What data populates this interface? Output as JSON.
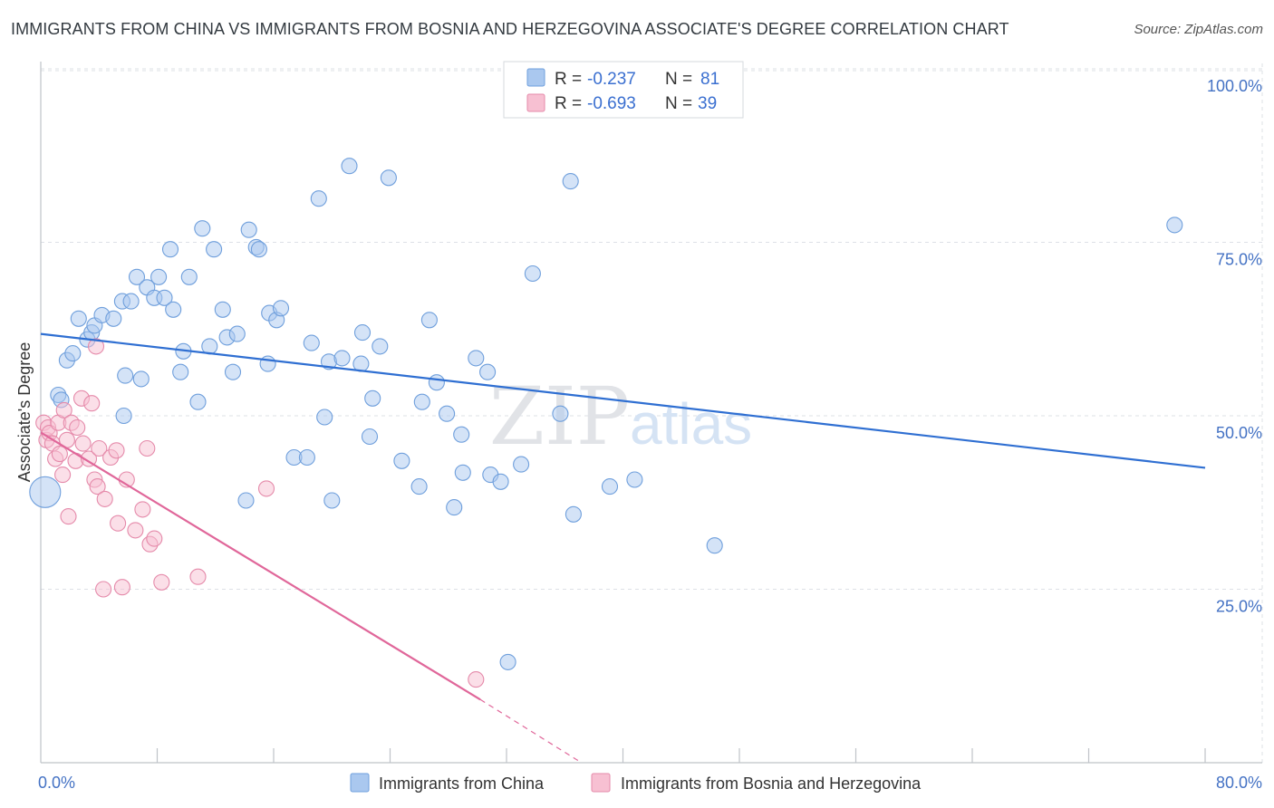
{
  "title": "IMMIGRANTS FROM CHINA VS IMMIGRANTS FROM BOSNIA AND HERZEGOVINA ASSOCIATE'S DEGREE CORRELATION CHART",
  "source": "Source: ZipAtlas.com",
  "watermark": "ZIPatlas",
  "colors": {
    "china_fill": "#aac8ef",
    "china_stroke": "#6f9fdc",
    "china_line": "#2f6fd2",
    "bosnia_fill": "#f7c0d2",
    "bosnia_stroke": "#e58aaa",
    "bosnia_line": "#e0679a",
    "tick_text": "#4472c4",
    "grid": "#dde0e6"
  },
  "legend": {
    "china": {
      "r_label": "R = ",
      "r_value": "-0.237",
      "n_label": "N = ",
      "n_value": "81"
    },
    "bosnia": {
      "r_label": "R = ",
      "r_value": "-0.693",
      "n_label": "N = ",
      "n_value": "39"
    }
  },
  "bottom_legend": {
    "china": "Immigrants from China",
    "bosnia": "Immigrants from Bosnia and Herzegovina"
  },
  "chart_data": {
    "type": "scatter",
    "title": "IMMIGRANTS FROM CHINA VS IMMIGRANTS FROM BOSNIA AND HERZEGOVINA ASSOCIATE'S DEGREE CORRELATION CHART",
    "xlabel": "",
    "ylabel": "Associate's Degree",
    "xlim": [
      0,
      80
    ],
    "ylim": [
      0,
      102
    ],
    "x_tick_labels": [
      "0.0%",
      "80.0%"
    ],
    "y_tick_labels": [
      "25.0%",
      "50.0%",
      "75.0%",
      "100.0%"
    ],
    "y_tick_values": [
      25,
      50,
      75,
      100
    ],
    "grid": true,
    "legend_position": "top-center",
    "series": [
      {
        "name": "Immigrants from China",
        "color": "#aac8ef",
        "trend": {
          "x": [
            0,
            80
          ],
          "y": [
            61.8,
            42.5
          ]
        },
        "points": [
          [
            0.3,
            39,
            3
          ],
          [
            1.2,
            53.0,
            1
          ],
          [
            1.4,
            52.3,
            1
          ],
          [
            1.8,
            58.0,
            1
          ],
          [
            2.2,
            59.0,
            1
          ],
          [
            2.6,
            64.0,
            1
          ],
          [
            3.2,
            61.0,
            1
          ],
          [
            3.5,
            62.0,
            1
          ],
          [
            3.7,
            63.0,
            1
          ],
          [
            4.2,
            64.5,
            1
          ],
          [
            5.0,
            64.0,
            1
          ],
          [
            5.6,
            66.5,
            1
          ],
          [
            5.7,
            50.0,
            1
          ],
          [
            5.8,
            55.8,
            1
          ],
          [
            6.2,
            66.5,
            1
          ],
          [
            6.6,
            70.0,
            1
          ],
          [
            6.9,
            55.3,
            1
          ],
          [
            7.3,
            68.5,
            1
          ],
          [
            7.8,
            67.0,
            1
          ],
          [
            8.1,
            70.0,
            1
          ],
          [
            8.5,
            67.0,
            1
          ],
          [
            8.9,
            74.0,
            1
          ],
          [
            9.1,
            65.3,
            1
          ],
          [
            9.6,
            56.3,
            1
          ],
          [
            9.8,
            59.3,
            1
          ],
          [
            10.2,
            70.0,
            1
          ],
          [
            10.8,
            52.0,
            1
          ],
          [
            11.1,
            77.0,
            1
          ],
          [
            11.6,
            60.0,
            1
          ],
          [
            11.9,
            74.0,
            1
          ],
          [
            12.5,
            65.3,
            1
          ],
          [
            12.8,
            61.3,
            1
          ],
          [
            13.2,
            56.3,
            1
          ],
          [
            13.5,
            61.8,
            1
          ],
          [
            14.1,
            37.8,
            1
          ],
          [
            14.3,
            76.8,
            1
          ],
          [
            14.8,
            74.3,
            1
          ],
          [
            15.0,
            74.0,
            1
          ],
          [
            15.6,
            57.5,
            1
          ],
          [
            15.7,
            64.8,
            1
          ],
          [
            16.2,
            63.8,
            1
          ],
          [
            16.5,
            65.5,
            1
          ],
          [
            17.4,
            44.0,
            1
          ],
          [
            18.3,
            44.0,
            1
          ],
          [
            18.6,
            60.5,
            1
          ],
          [
            19.1,
            81.3,
            1
          ],
          [
            19.5,
            49.8,
            1
          ],
          [
            19.8,
            57.8,
            1
          ],
          [
            20.0,
            37.8,
            1
          ],
          [
            20.7,
            58.3,
            1
          ],
          [
            21.2,
            86.0,
            1
          ],
          [
            22.0,
            57.5,
            1
          ],
          [
            22.1,
            62.0,
            1
          ],
          [
            22.6,
            47.0,
            1
          ],
          [
            22.8,
            52.5,
            1
          ],
          [
            23.3,
            60.0,
            1
          ],
          [
            23.9,
            84.3,
            1
          ],
          [
            24.8,
            43.5,
            1
          ],
          [
            26.0,
            39.8,
            1
          ],
          [
            26.2,
            52.0,
            1
          ],
          [
            26.7,
            63.8,
            1
          ],
          [
            27.2,
            54.8,
            1
          ],
          [
            27.9,
            50.3,
            1
          ],
          [
            28.4,
            36.8,
            1
          ],
          [
            28.9,
            47.3,
            1
          ],
          [
            29.0,
            41.8,
            1
          ],
          [
            29.9,
            58.3,
            1
          ],
          [
            30.7,
            56.3,
            1
          ],
          [
            30.9,
            41.5,
            1
          ],
          [
            31.6,
            40.5,
            1
          ],
          [
            32.1,
            14.5,
            1
          ],
          [
            33.0,
            43.0,
            1
          ],
          [
            33.8,
            70.5,
            1
          ],
          [
            35.7,
            50.3,
            1
          ],
          [
            36.4,
            83.8,
            1
          ],
          [
            36.6,
            35.8,
            1
          ],
          [
            39.1,
            39.8,
            1
          ],
          [
            40.8,
            40.8,
            1
          ],
          [
            46.3,
            31.3,
            1
          ],
          [
            77.9,
            77.5,
            1
          ]
        ]
      },
      {
        "name": "Immigrants from Bosnia and Herzegovina",
        "color": "#f7c0d2",
        "trend": {
          "x": [
            0,
            30.2
          ],
          "y": [
            47.6,
            9.1
          ],
          "dashed_to": {
            "x": 37,
            "y": 0.2
          }
        },
        "points": [
          [
            0.2,
            49.0,
            1
          ],
          [
            0.4,
            46.5,
            1
          ],
          [
            0.5,
            48.3,
            1
          ],
          [
            0.6,
            47.5,
            1
          ],
          [
            0.8,
            46.0,
            1
          ],
          [
            1.0,
            43.8,
            1
          ],
          [
            1.2,
            49.0,
            1
          ],
          [
            1.3,
            44.5,
            1
          ],
          [
            1.5,
            41.5,
            1
          ],
          [
            1.6,
            50.8,
            1
          ],
          [
            1.8,
            46.5,
            1
          ],
          [
            1.9,
            35.5,
            1
          ],
          [
            2.1,
            49.0,
            1
          ],
          [
            2.4,
            43.5,
            1
          ],
          [
            2.5,
            48.3,
            1
          ],
          [
            2.8,
            52.5,
            1
          ],
          [
            2.9,
            46.0,
            1
          ],
          [
            3.3,
            43.8,
            1
          ],
          [
            3.5,
            51.8,
            1
          ],
          [
            3.7,
            40.8,
            1
          ],
          [
            3.8,
            60.0,
            1
          ],
          [
            3.9,
            39.8,
            1
          ],
          [
            4.0,
            45.3,
            1
          ],
          [
            4.3,
            25.0,
            1
          ],
          [
            4.4,
            38.0,
            1
          ],
          [
            4.8,
            44.0,
            1
          ],
          [
            5.2,
            45.0,
            1
          ],
          [
            5.3,
            34.5,
            1
          ],
          [
            5.6,
            25.3,
            1
          ],
          [
            5.9,
            40.8,
            1
          ],
          [
            6.5,
            33.5,
            1
          ],
          [
            7.0,
            36.5,
            1
          ],
          [
            7.3,
            45.3,
            1
          ],
          [
            7.5,
            31.5,
            1
          ],
          [
            7.8,
            32.3,
            1
          ],
          [
            8.3,
            26.0,
            1
          ],
          [
            10.8,
            26.8,
            1
          ],
          [
            15.5,
            39.5,
            1
          ],
          [
            29.9,
            12.0,
            1
          ]
        ]
      }
    ]
  }
}
